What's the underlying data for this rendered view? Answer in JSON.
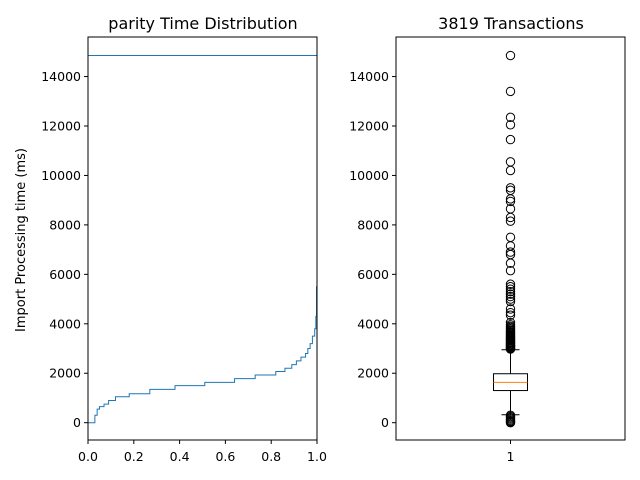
{
  "chart_data": [
    {
      "type": "line",
      "subtype": "ecdf-step",
      "title": "parity Time Distribution",
      "xlabel": "",
      "ylabel": "Import Processing time (ms)",
      "xlim": [
        0.0,
        1.0
      ],
      "ylim": [
        -700,
        15600
      ],
      "xticks": [
        "0.0",
        "0.2",
        "0.4",
        "0.6",
        "0.8",
        "1.0"
      ],
      "yticks": [
        "0",
        "2000",
        "4000",
        "6000",
        "8000",
        "10000",
        "12000",
        "14000"
      ],
      "grid": false,
      "color": "#1f77b4",
      "x": [
        0.0,
        0.03,
        0.03,
        0.04,
        0.04,
        0.05,
        0.05,
        0.07,
        0.07,
        0.09,
        0.09,
        0.12,
        0.12,
        0.18,
        0.18,
        0.27,
        0.27,
        0.38,
        0.38,
        0.51,
        0.51,
        0.64,
        0.64,
        0.73,
        0.73,
        0.82,
        0.82,
        0.86,
        0.86,
        0.89,
        0.89,
        0.91,
        0.91,
        0.93,
        0.93,
        0.95,
        0.95,
        0.96,
        0.96,
        0.97,
        0.97,
        0.98,
        0.98,
        0.99,
        0.99,
        0.995,
        0.995,
        0.998,
        0.998,
        1.0,
        1.0,
        1.0,
        0.0
      ],
      "y": [
        0,
        0,
        300,
        300,
        550,
        550,
        650,
        650,
        750,
        750,
        900,
        900,
        1050,
        1050,
        1170,
        1170,
        1350,
        1350,
        1500,
        1500,
        1630,
        1630,
        1780,
        1780,
        1930,
        1930,
        2070,
        2070,
        2200,
        2200,
        2350,
        2350,
        2500,
        2500,
        2650,
        2650,
        2800,
        2800,
        3000,
        3000,
        3200,
        3200,
        3500,
        3500,
        3800,
        3800,
        4300,
        4300,
        5500,
        5500,
        11500,
        14850,
        14850
      ]
    },
    {
      "type": "box",
      "title": "3819 Transactions",
      "xlabel": "",
      "ylabel": "",
      "xticks": [
        "1"
      ],
      "ylim": [
        -700,
        15600
      ],
      "yticks": [
        "0",
        "2000",
        "4000",
        "6000",
        "8000",
        "10000",
        "12000",
        "14000"
      ],
      "grid": false,
      "box": {
        "whisker_low": 320,
        "q1": 1300,
        "median": 1630,
        "q3": 1980,
        "whisker_high": 2950
      },
      "median_color": "#ff7f0e",
      "outliers": [
        0,
        30,
        60,
        100,
        150,
        200,
        250,
        300,
        2980,
        3000,
        3020,
        3050,
        3080,
        3100,
        3130,
        3160,
        3200,
        3230,
        3260,
        3300,
        3330,
        3360,
        3400,
        3430,
        3460,
        3500,
        3540,
        3580,
        3620,
        3660,
        3700,
        3750,
        3800,
        3850,
        3900,
        3960,
        4050,
        4350,
        4450,
        4600,
        4900,
        5000,
        5100,
        5200,
        5300,
        5400,
        5500,
        5600,
        6150,
        6450,
        6800,
        6900,
        7150,
        7500,
        8150,
        8300,
        8650,
        8950,
        9050,
        9400,
        9500,
        10200,
        10550,
        11450,
        12050,
        12350,
        13400,
        14850
      ]
    }
  ]
}
